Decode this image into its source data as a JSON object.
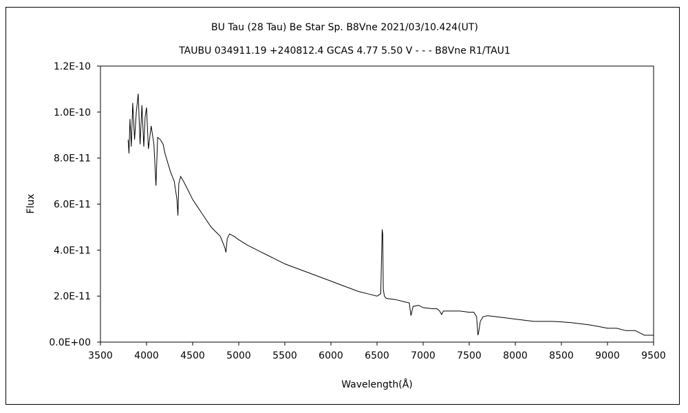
{
  "chart_data": {
    "type": "line",
    "title": "BU Tau (28 Tau)    Be Star    Sp. B8Vne    2021/03/10.424(UT)",
    "subtitle": "TAUBU 034911.19 +240812.4 GCAS 4.77 5.50 V - - - B8Vne R1/TAU1",
    "xlabel": "Wavelength(Å)",
    "ylabel": "Flux",
    "xlim": [
      3500,
      9500
    ],
    "ylim": [
      0,
      1.2e-10
    ],
    "x_ticks": [
      3500,
      4000,
      4500,
      5000,
      5500,
      6000,
      6500,
      7000,
      7500,
      8000,
      8500,
      9000,
      9500
    ],
    "x_tick_labels": [
      "3500",
      "4000",
      "4500",
      "5000",
      "5500",
      "6000",
      "6500",
      "7000",
      "7500",
      "8000",
      "8500",
      "9000",
      "9500"
    ],
    "y_ticks": [
      0,
      2e-11,
      4e-11,
      6e-11,
      8e-11,
      1e-10,
      1.2e-10
    ],
    "y_tick_labels": [
      "0.0E+00",
      "2.0E-11",
      "4.0E-11",
      "6.0E-11",
      "8.0E-11",
      "1.0E-10",
      "1.2E-10"
    ],
    "grid": false,
    "legend": "none",
    "line_color": "#000000",
    "series": [
      {
        "x": [
          3800,
          3810,
          3820,
          3835,
          3850,
          3870,
          3889,
          3910,
          3930,
          3950,
          3970,
          3985,
          4000,
          4020,
          4050,
          4080,
          4102,
          4120,
          4150,
          4180,
          4200,
          4230,
          4260,
          4300,
          4330,
          4340,
          4350,
          4370,
          4400,
          4450,
          4500,
          4550,
          4600,
          4650,
          4700,
          4750,
          4800,
          4830,
          4850,
          4861,
          4875,
          4900,
          4950,
          5000,
          5100,
          5200,
          5300,
          5400,
          5500,
          5600,
          5700,
          5800,
          5900,
          6000,
          6100,
          6200,
          6300,
          6400,
          6500,
          6540,
          6556,
          6562,
          6568,
          6580,
          6600,
          6700,
          6800,
          6850,
          6868,
          6890,
          6950,
          7000,
          7100,
          7150,
          7180,
          7200,
          7220,
          7300,
          7400,
          7500,
          7550,
          7580,
          7595,
          7605,
          7620,
          7650,
          7700,
          7800,
          7900,
          8000,
          8100,
          8200,
          8300,
          8400,
          8500,
          8600,
          8700,
          8800,
          8900,
          9000,
          9100,
          9200,
          9300,
          9350,
          9400,
          9450,
          9500
        ],
        "y": [
          8.8e-11,
          8.2e-11,
          9.7e-11,
          8.5e-11,
          1.04e-10,
          8.8e-11,
          1e-10,
          1.08e-10,
          8.6e-11,
          1.03e-10,
          8.5e-11,
          9.8e-11,
          1.02e-10,
          8.4e-11,
          9.4e-11,
          8.6e-11,
          6.8e-11,
          8.9e-11,
          8.8e-11,
          8.6e-11,
          8.2e-11,
          7.8e-11,
          7.4e-11,
          7e-11,
          6.2e-11,
          5.5e-11,
          6.9e-11,
          7.2e-11,
          7e-11,
          6.6e-11,
          6.2e-11,
          5.9e-11,
          5.6e-11,
          5.3e-11,
          5e-11,
          4.8e-11,
          4.6e-11,
          4.3e-11,
          4.1e-11,
          3.9e-11,
          4.5e-11,
          4.7e-11,
          4.6e-11,
          4.45e-11,
          4.2e-11,
          4e-11,
          3.8e-11,
          3.6e-11,
          3.4e-11,
          3.25e-11,
          3.1e-11,
          2.95e-11,
          2.8e-11,
          2.65e-11,
          2.5e-11,
          2.35e-11,
          2.2e-11,
          2.1e-11,
          2e-11,
          2.1e-11,
          4.9e-11,
          4.7e-11,
          2.3e-11,
          2e-11,
          1.9e-11,
          1.85e-11,
          1.75e-11,
          1.7e-11,
          1.15e-11,
          1.55e-11,
          1.6e-11,
          1.5e-11,
          1.45e-11,
          1.45e-11,
          1.35e-11,
          1.2e-11,
          1.35e-11,
          1.35e-11,
          1.35e-11,
          1.3e-11,
          1.3e-11,
          1.1e-11,
          3e-12,
          5e-12,
          9e-12,
          1.1e-11,
          1.15e-11,
          1.1e-11,
          1.05e-11,
          1e-11,
          9.5e-12,
          9e-12,
          9e-12,
          9e-12,
          8.8e-12,
          8.5e-12,
          8e-12,
          7.5e-12,
          6.8e-12,
          6e-12,
          6e-12,
          5e-12,
          5e-12,
          4e-12,
          3e-12,
          3e-12,
          3e-12
        ]
      }
    ]
  }
}
